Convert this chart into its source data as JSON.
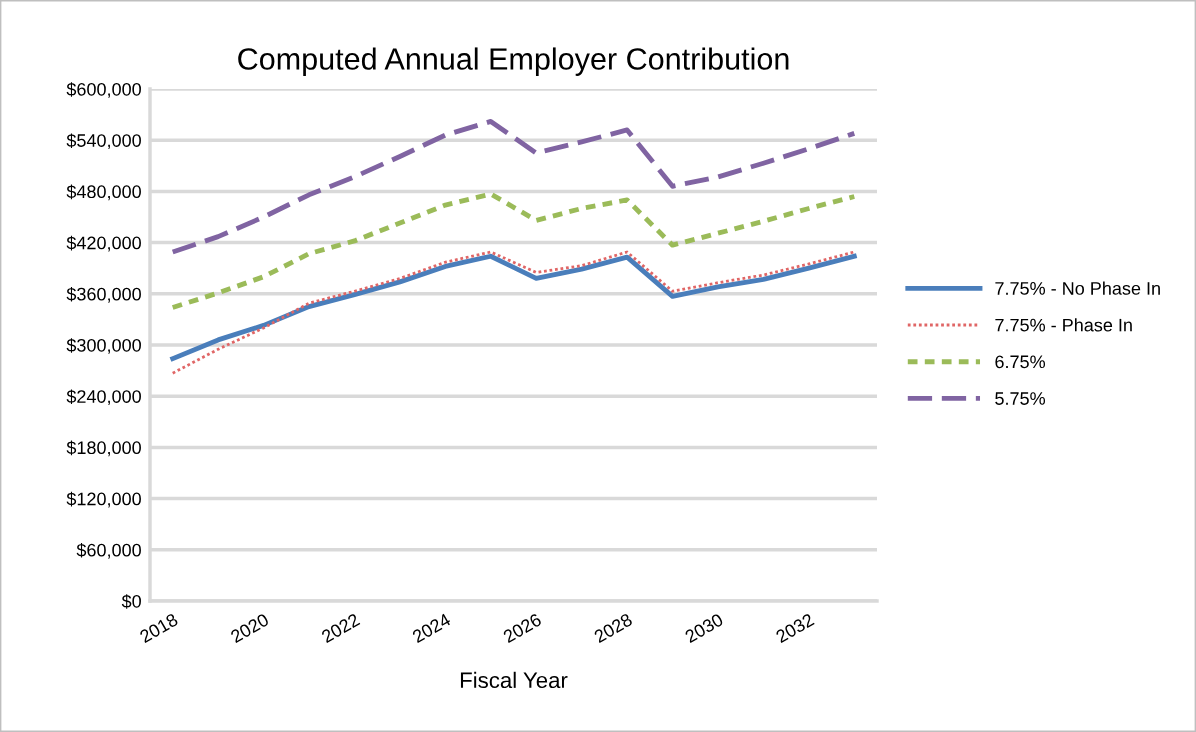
{
  "chart_data": {
    "type": "line",
    "title": "Computed Annual Employer Contribution",
    "xlabel": "Fiscal Year",
    "categories": [
      "2018",
      null,
      "2020",
      null,
      "2022",
      null,
      "2024",
      null,
      "2026",
      null,
      "2028",
      null,
      "2030",
      null,
      "2032",
      null
    ],
    "series": [
      {
        "name": "7.75% - No Phase In",
        "color": "#4a7ebb",
        "line_style": "solid",
        "values": [
          284000,
          306000,
          323000,
          345000,
          359000,
          374000,
          392000,
          404000,
          378000,
          389000,
          403000,
          357000,
          368000,
          377000,
          390000,
          404000
        ]
      },
      {
        "name": "7.75% - Phase In",
        "color": "#e06666",
        "line_style": "dotted",
        "values": [
          267000,
          295000,
          320000,
          349000,
          363000,
          378000,
          397000,
          409000,
          385000,
          393000,
          409000,
          363000,
          373000,
          382000,
          395000,
          409000
        ]
      },
      {
        "name": "6.75%",
        "color": "#9bbb59",
        "line_style": "dashed",
        "values": [
          344000,
          361000,
          380000,
          407000,
          422000,
          443000,
          464000,
          477000,
          446000,
          460000,
          470000,
          417000,
          431000,
          445000,
          460000,
          474000
        ]
      },
      {
        "name": "5.75%",
        "color": "#8064a2",
        "line_style": "longdash",
        "values": [
          409000,
          427000,
          450000,
          476000,
          497000,
          521000,
          546000,
          562000,
          525000,
          538000,
          552000,
          486000,
          497000,
          513000,
          530000,
          548000
        ]
      }
    ],
    "ylim": [
      0,
      600000
    ],
    "yticks": [
      {
        "value": 0,
        "label": "$0"
      },
      {
        "value": 60000,
        "label": "$60,000"
      },
      {
        "value": 120000,
        "label": "$120,000"
      },
      {
        "value": 180000,
        "label": "$180,000"
      },
      {
        "value": 240000,
        "label": "$240,000"
      },
      {
        "value": 300000,
        "label": "$300,000"
      },
      {
        "value": 360000,
        "label": "$360,000"
      },
      {
        "value": 420000,
        "label": "$420,000"
      },
      {
        "value": 480000,
        "label": "$480,000"
      },
      {
        "value": 540000,
        "label": "$540,000"
      },
      {
        "value": 600000,
        "label": "$600,000"
      }
    ],
    "grid": "y",
    "legend": "right",
    "marker": "none"
  }
}
